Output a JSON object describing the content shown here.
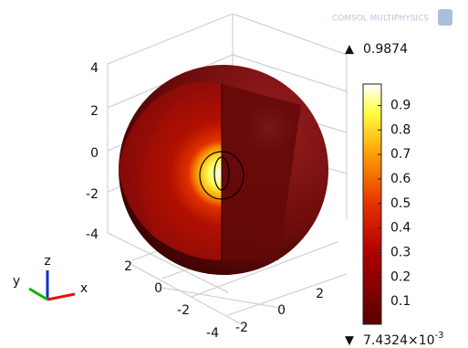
{
  "logo": "COMSOL MULTIPHYSICS",
  "colorbar": {
    "max": 0.9874,
    "min": {
      "value": 0.0074324,
      "mantissa": "7.4324×10",
      "exponent": "-3"
    },
    "ticks": [
      0.1,
      0.2,
      0.3,
      0.4,
      0.5,
      0.6,
      0.7,
      0.8,
      0.9
    ]
  },
  "axes": {
    "z_ticks": [
      4,
      2,
      0,
      -2,
      -4
    ],
    "y_ticks": [
      2,
      0,
      -2,
      -4
    ],
    "x_ticks": [
      -2,
      0,
      2
    ]
  },
  "triad": {
    "x": "x",
    "y": "y",
    "z": "z"
  }
}
